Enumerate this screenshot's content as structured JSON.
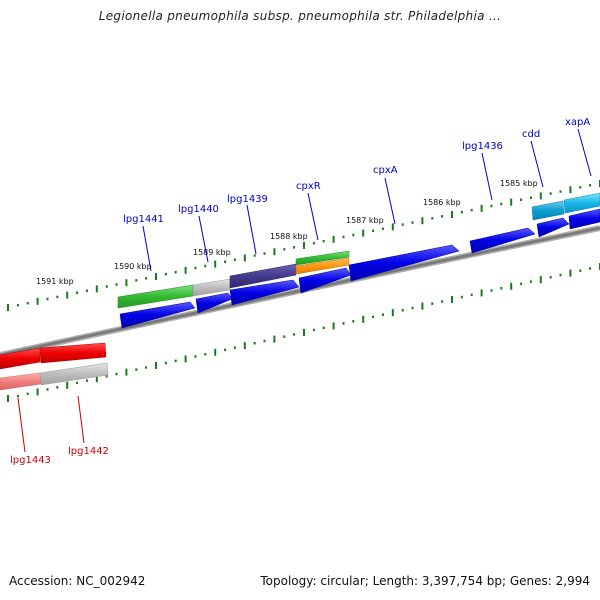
{
  "title": "Legionella pneumophila subsp. pneumophila str. Philadelphia ...",
  "footer": {
    "accession": "Accession: NC_002942",
    "topology": "Topology: circular; Length: 3,397,754 bp; Genes: 2,994"
  },
  "colors": {
    "forward_label": "#0000cc",
    "reverse_label": "#cc0000",
    "backbone": "#8a8a8a",
    "tick": "#1a7a1a"
  },
  "ruler_labels": [
    "1591 kbp",
    "1590 kbp",
    "1589 kbp",
    "1588 kbp",
    "1587 kbp",
    "1586 kbp",
    "1585 kbp"
  ],
  "genes_forward": [
    "lpg1441",
    "lpg1440",
    "lpg1439",
    "cpxR",
    "cpxA",
    "lpg1436",
    "cdd",
    "xapA"
  ],
  "genes_reverse": [
    "lpg1443",
    "lpg1442"
  ]
}
